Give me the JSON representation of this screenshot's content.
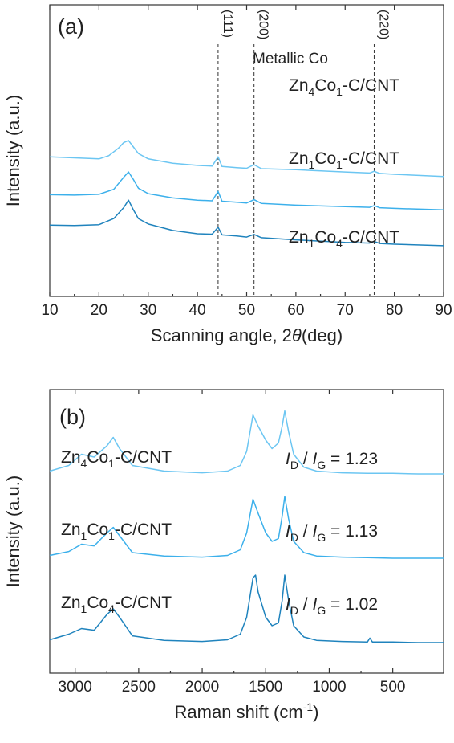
{
  "chart_data": [
    {
      "type": "line",
      "panel": "(a)",
      "xlabel": "Scanning angle, 2θ (deg)",
      "xlabel_parts": [
        "Scanning angle, 2",
        "θ",
        "(deg)"
      ],
      "ylabel": "Intensity (a.u.)",
      "xlim": [
        10,
        90
      ],
      "xticks": [
        10,
        20,
        30,
        40,
        50,
        60,
        70,
        80,
        90
      ],
      "y_ticks_labeled": false,
      "grid": false,
      "reference_lines": [
        {
          "x": 44.2,
          "label": "(111)"
        },
        {
          "x": 51.5,
          "label": "(200)"
        },
        {
          "x": 75.9,
          "label": "(220)"
        }
      ],
      "annotation": "Metallic Co",
      "series": [
        {
          "name": "Zn4Co1-C/CNT",
          "label_parts": [
            "Zn",
            "4",
            "Co",
            "1",
            "-C/CNT"
          ],
          "color": "#6cc6f2",
          "baseline": 3.0,
          "x": [
            10,
            15,
            20,
            22,
            24,
            25,
            26,
            27,
            28,
            30,
            35,
            40,
            43,
            44.2,
            45,
            48,
            50,
            51.5,
            53,
            60,
            70,
            75,
            75.9,
            77,
            80,
            90
          ],
          "y": [
            1.55,
            1.5,
            1.45,
            1.6,
            1.95,
            2.2,
            2.3,
            2.0,
            1.7,
            1.45,
            1.25,
            1.15,
            1.12,
            1.55,
            1.1,
            1.05,
            1.02,
            1.18,
            1.0,
            0.95,
            0.85,
            0.8,
            0.88,
            0.78,
            0.74,
            0.64
          ]
        },
        {
          "name": "Zn1Co1-C/CNT",
          "label_parts": [
            "Zn",
            "1",
            "Co",
            "1",
            "-C/CNT"
          ],
          "color": "#3cb0eb",
          "baseline": 1.5,
          "x": [
            10,
            15,
            20,
            23,
            25,
            26,
            27,
            28,
            30,
            35,
            40,
            43,
            44.2,
            45,
            48,
            50,
            51.5,
            53,
            60,
            70,
            75,
            75.9,
            77,
            80,
            90
          ],
          "y": [
            1.3,
            1.28,
            1.32,
            1.55,
            2.1,
            2.35,
            2.0,
            1.6,
            1.35,
            1.15,
            1.05,
            1.02,
            1.45,
            1.0,
            0.95,
            0.92,
            1.07,
            0.9,
            0.82,
            0.75,
            0.72,
            0.8,
            0.7,
            0.67,
            0.6
          ]
        },
        {
          "name": "Zn1Co4-C/CNT",
          "label_parts": [
            "Zn",
            "1",
            "Co",
            "4",
            "-C/CNT"
          ],
          "color": "#1f83bd",
          "baseline": 0.0,
          "x": [
            10,
            15,
            20,
            23,
            25,
            26,
            27,
            28,
            30,
            35,
            40,
            43,
            44.2,
            45,
            48,
            50,
            51.5,
            53,
            60,
            70,
            75,
            75.9,
            77,
            80,
            90
          ],
          "y": [
            1.4,
            1.38,
            1.42,
            1.7,
            2.2,
            2.55,
            2.1,
            1.7,
            1.45,
            1.15,
            1.0,
            0.98,
            1.3,
            0.95,
            0.9,
            0.85,
            0.97,
            0.82,
            0.72,
            0.6,
            0.57,
            0.65,
            0.55,
            0.52,
            0.45
          ]
        }
      ]
    },
    {
      "type": "line",
      "panel": "(b)",
      "xlabel": "Raman shift (cm-1)",
      "xlabel_parts": [
        "Raman shift (cm",
        "-1",
        ")"
      ],
      "ylabel": "Intensity (a.u.)",
      "xlim": [
        3200,
        100
      ],
      "reversed_x": true,
      "xticks": [
        3000,
        2500,
        2000,
        1500,
        1000,
        500
      ],
      "y_ticks_labeled": false,
      "grid": false,
      "series": [
        {
          "name": "Zn4Co1-C/CNT",
          "label_parts": [
            "Zn",
            "4",
            "Co",
            "1",
            "-C/CNT"
          ],
          "ratio_parts": [
            "I",
            "D",
            " / ",
            "I",
            "G",
            " = 1.23"
          ],
          "ID_IG": 1.23,
          "color": "#6cc6f2",
          "baseline": 3.0,
          "x": [
            3200,
            3050,
            2950,
            2850,
            2750,
            2700,
            2650,
            2550,
            2300,
            2000,
            1800,
            1700,
            1650,
            1600,
            1560,
            1500,
            1450,
            1400,
            1370,
            1350,
            1320,
            1280,
            1200,
            1100,
            900,
            700,
            500,
            300,
            100
          ],
          "y": [
            0.05,
            0.15,
            0.35,
            0.3,
            0.5,
            0.65,
            0.45,
            0.15,
            0.05,
            0.02,
            0.05,
            0.15,
            0.4,
            1.05,
            0.85,
            0.6,
            0.45,
            0.55,
            0.85,
            1.12,
            0.75,
            0.35,
            0.12,
            0.05,
            0.02,
            0.01,
            0.01,
            0.0,
            0.0
          ]
        },
        {
          "name": "Zn1Co1-C/CNT",
          "label_parts": [
            "Zn",
            "1",
            "Co",
            "1",
            "-C/CNT"
          ],
          "ratio_parts": [
            "I",
            "D",
            " / ",
            "I",
            "G",
            " = 1.13"
          ],
          "ID_IG": 1.13,
          "color": "#3cb0eb",
          "baseline": 1.5,
          "x": [
            3200,
            3050,
            2950,
            2850,
            2750,
            2700,
            2650,
            2550,
            2300,
            2000,
            1800,
            1700,
            1650,
            1600,
            1560,
            1500,
            1450,
            1400,
            1370,
            1350,
            1320,
            1280,
            1200,
            1100,
            900,
            700,
            500,
            300,
            100
          ],
          "y": [
            0.05,
            0.12,
            0.25,
            0.22,
            0.45,
            0.55,
            0.4,
            0.1,
            0.04,
            0.02,
            0.05,
            0.15,
            0.45,
            1.05,
            0.8,
            0.45,
            0.3,
            0.35,
            0.75,
            1.1,
            0.7,
            0.3,
            0.1,
            0.04,
            0.02,
            0.01,
            0.0,
            0.0,
            0.0
          ]
        },
        {
          "name": "Zn1Co4-C/CNT",
          "label_parts": [
            "Zn",
            "1",
            "Co",
            "4",
            "-C/CNT"
          ],
          "ratio_parts": [
            "I",
            "D",
            " / ",
            "I",
            "G",
            " = 1.02"
          ],
          "ID_IG": 1.02,
          "color": "#1f83bd",
          "baseline": 0.0,
          "x": [
            3200,
            3050,
            2950,
            2850,
            2750,
            2700,
            2650,
            2550,
            2300,
            2000,
            1800,
            1700,
            1650,
            1600,
            1580,
            1560,
            1500,
            1450,
            1400,
            1370,
            1350,
            1320,
            1280,
            1200,
            1100,
            900,
            700,
            680,
            660,
            500,
            300,
            100
          ],
          "y": [
            0.05,
            0.15,
            0.25,
            0.22,
            0.5,
            0.6,
            0.45,
            0.12,
            0.04,
            0.02,
            0.05,
            0.15,
            0.45,
            1.15,
            1.2,
            0.9,
            0.45,
            0.3,
            0.35,
            0.75,
            1.2,
            0.75,
            0.3,
            0.1,
            0.04,
            0.02,
            0.01,
            0.08,
            0.01,
            0.01,
            0.0,
            0.0
          ]
        }
      ]
    }
  ]
}
